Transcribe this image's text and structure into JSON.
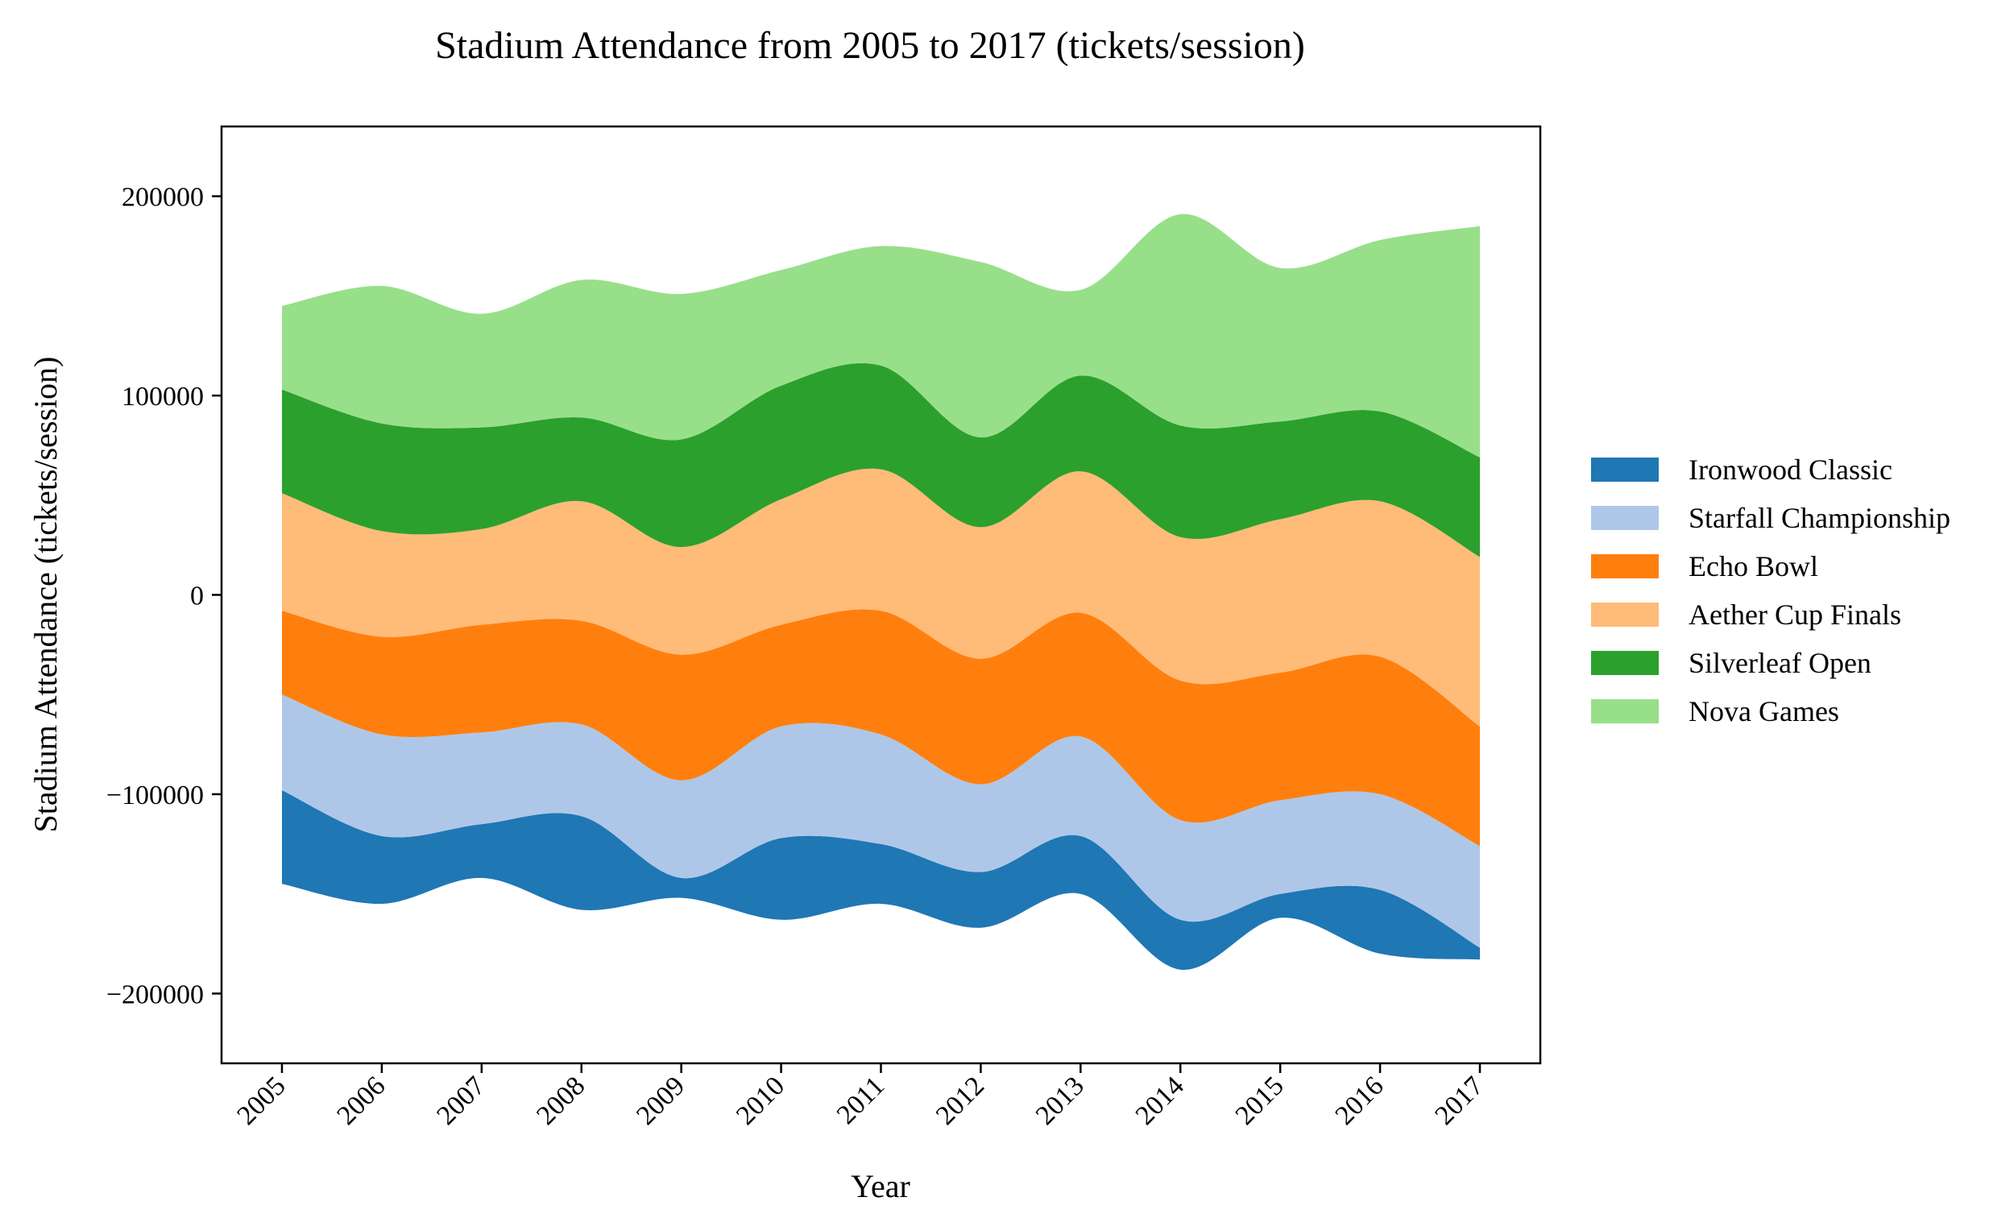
{
  "chart_data": {
    "type": "area",
    "subtype": "streamgraph",
    "title": "Stadium Attendance from 2005 to 2017 (tickets/session)",
    "xlabel": "Year",
    "ylabel": "Stadium Attendance (tickets/session)",
    "x": [
      "2005",
      "2006",
      "2007",
      "2008",
      "2009",
      "2010",
      "2011",
      "2012",
      "2013",
      "2014",
      "2015",
      "2016",
      "2017"
    ],
    "ylim": [
      -235000,
      235000
    ],
    "yticks": [
      -200000,
      -100000,
      0,
      100000,
      200000
    ],
    "ytick_labels": [
      "−200000",
      "−100000",
      "0",
      "100000",
      "200000"
    ],
    "grid": false,
    "legend_position": "right",
    "baseline": [
      -145000,
      -155000,
      -142000,
      -158000,
      -152000,
      -163000,
      -155000,
      -167000,
      -150000,
      -188000,
      -162000,
      -180000,
      -183000
    ],
    "series": [
      {
        "name": "Ironwood Classic",
        "color": "#1f77b4",
        "values": [
          47000,
          34000,
          27000,
          47000,
          10000,
          41000,
          30000,
          28000,
          29000,
          25000,
          12000,
          32000,
          6000
        ]
      },
      {
        "name": "Starfall Championship",
        "color": "#aec7e8",
        "values": [
          48000,
          51000,
          46000,
          46000,
          49000,
          56000,
          55000,
          44000,
          50000,
          50000,
          47000,
          48000,
          51000
        ]
      },
      {
        "name": "Echo Bowl",
        "color": "#ff7f0e",
        "values": [
          42000,
          49000,
          54000,
          52000,
          63000,
          51000,
          62000,
          63000,
          62000,
          70000,
          64000,
          69000,
          60000
        ]
      },
      {
        "name": "Aether Cup Finals",
        "color": "#ffbb78",
        "values": [
          59000,
          53000,
          48000,
          60000,
          54000,
          63000,
          71000,
          66000,
          71000,
          72000,
          77000,
          78000,
          85000
        ]
      },
      {
        "name": "Silverleaf Open",
        "color": "#2ca02c",
        "values": [
          52000,
          54000,
          51000,
          42000,
          54000,
          57000,
          52000,
          45000,
          48000,
          56000,
          49000,
          45000,
          50000
        ]
      },
      {
        "name": "Nova Games",
        "color": "#98df8a",
        "values": [
          42000,
          69000,
          57000,
          69000,
          73000,
          58000,
          60000,
          88000,
          43000,
          106000,
          77000,
          86000,
          116000
        ]
      }
    ]
  }
}
